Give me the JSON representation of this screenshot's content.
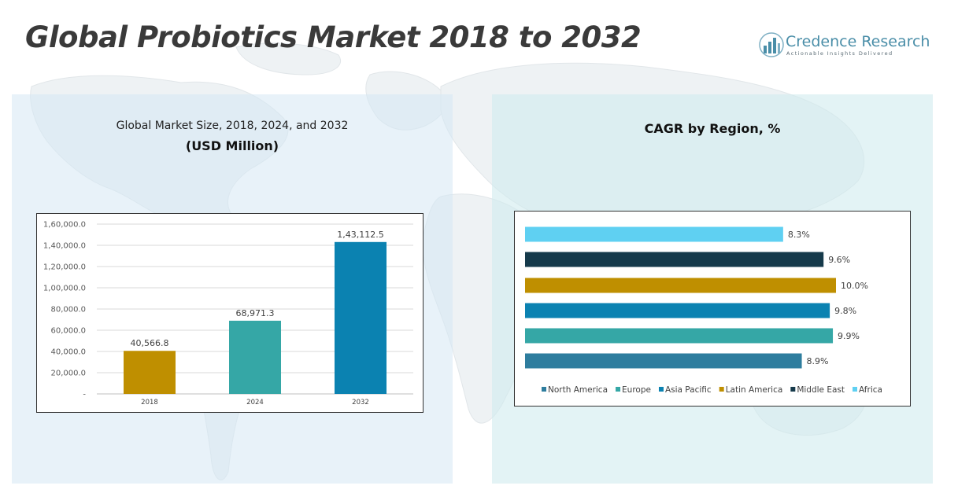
{
  "header": {
    "title": "Global Probiotics Market 2018 to 2032",
    "logo_name": "Credence Research",
    "logo_tagline": "Actionable Insights Delivered"
  },
  "left_panel": {
    "title": "Global Market Size, 2018, 2024, and 2032",
    "subtitle": "(USD Million)"
  },
  "right_panel": {
    "title": "CAGR by Region, %"
  },
  "colors": {
    "y2018": "#bf8f00",
    "y2024": "#35a7a6",
    "y2032": "#0b82b1",
    "north_america": "#2e7d9e",
    "europe": "#35a7a6",
    "asia_pacific": "#0b82b1",
    "latin_america": "#bf8f00",
    "middle_east": "#163a4b",
    "africa": "#5fd0f2"
  },
  "chart_data": [
    {
      "type": "bar",
      "categories": [
        "2018",
        "2024",
        "2032"
      ],
      "values": [
        40566.8,
        68971.3,
        143112.5
      ],
      "value_labels": [
        "40,566.8",
        "68,971.3",
        "1,43,112.5"
      ],
      "ylim": [
        0,
        160000
      ],
      "yticks": [
        "-",
        "20,000.0",
        "40,000.0",
        "60,000.0",
        "80,000.0",
        "1,00,000.0",
        "1,20,000.0",
        "1,40,000.0",
        "1,60,000.0"
      ],
      "grid": true
    },
    {
      "type": "bar",
      "orientation": "horizontal",
      "categories": [
        "North America",
        "Europe",
        "Asia Pacific",
        "Latin America",
        "Middle East",
        "Africa"
      ],
      "values": [
        8.9,
        9.9,
        9.8,
        10.0,
        9.6,
        8.3
      ],
      "value_labels": [
        "8.9%",
        "9.9%",
        "9.8%",
        "10.0%",
        "9.6%",
        "8.3%"
      ],
      "legend": "bottom",
      "grid": false
    }
  ]
}
